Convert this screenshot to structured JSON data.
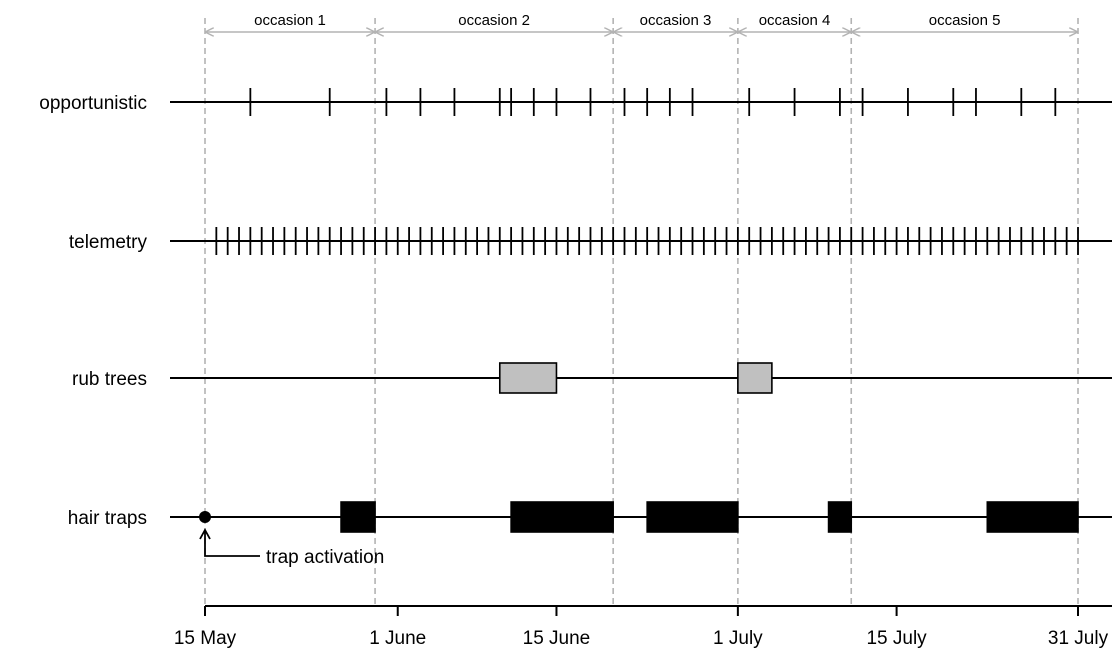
{
  "chart_data": {
    "type": "timeline",
    "x_unit": "date",
    "x_range": [
      "15 May",
      "31 July"
    ],
    "rows": [
      {
        "label": "opportunistic",
        "kind": "ticks",
        "dates": [
          "19 May",
          "26 May",
          "31 May",
          "3 June",
          "6 June",
          "10 June",
          "11 June",
          "13 June",
          "15 June",
          "18 June",
          "21 June",
          "23 June",
          "25 June",
          "27 June",
          "2 July",
          "6 July",
          "10 July",
          "12 July",
          "16 July",
          "20 July",
          "22 July",
          "26 July",
          "29 July"
        ]
      },
      {
        "label": "telemetry",
        "kind": "ticks",
        "range_daily": [
          "16 May",
          "31 July"
        ]
      },
      {
        "label": "rub trees",
        "kind": "boxes",
        "fill": "#c0c0c0",
        "intervals": [
          [
            "10 June",
            "15 June"
          ],
          [
            "1 July",
            "4 July"
          ]
        ]
      },
      {
        "label": "hair traps",
        "kind": "boxes",
        "fill": "#000000",
        "marker_date": "15 May",
        "intervals": [
          [
            "27 May",
            "30 May"
          ],
          [
            "11 June",
            "20 June"
          ],
          [
            "23 June",
            "1 July"
          ],
          [
            "9 July",
            "11 July"
          ],
          [
            "23 July",
            "31 July"
          ]
        ]
      }
    ],
    "occasions": [
      {
        "label": "occasion 1",
        "start": "15 May",
        "end": "30 May"
      },
      {
        "label": "occasion 2",
        "start": "30 May",
        "end": "20 June"
      },
      {
        "label": "occasion 3",
        "start": "20 June",
        "end": "1 July"
      },
      {
        "label": "occasion 4",
        "start": "1 July",
        "end": "11 July"
      },
      {
        "label": "occasion 5",
        "start": "11 July",
        "end": "31 July"
      }
    ],
    "x_ticks": [
      "15 May",
      "1 June",
      "15 June",
      "1 July",
      "15 July",
      "31 July"
    ],
    "annotation": {
      "text": "trap activation",
      "date": "15 May",
      "row": "hair traps"
    },
    "colors": {
      "line": "#000000",
      "divider": "#b3b3b3",
      "occasion_arrow": "#b3b3b3"
    }
  }
}
